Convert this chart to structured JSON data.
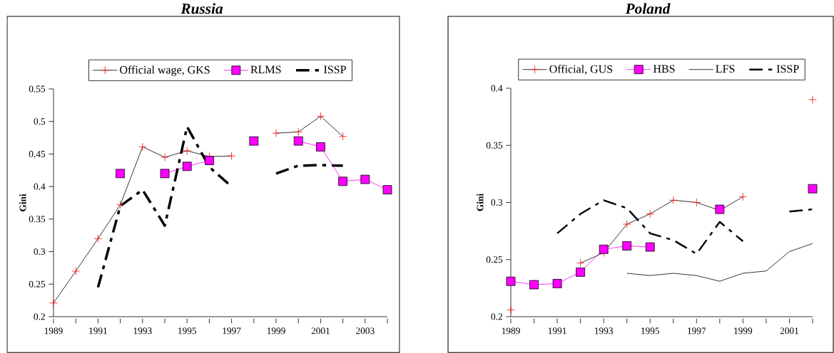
{
  "chart_data": [
    {
      "type": "line",
      "title": "Russia",
      "ylabel": "Gini",
      "legend": "top",
      "categories": [
        "1989",
        null,
        "1991",
        null,
        "1993",
        null,
        "1995",
        null,
        "1997",
        null,
        "1999",
        null,
        "2001",
        null,
        "2003",
        null
      ],
      "ylim": [
        0.2,
        0.55
      ],
      "yticks": [
        0.2,
        0.25,
        0.3,
        0.35,
        0.4,
        0.45,
        0.5,
        0.55
      ],
      "series": [
        {
          "name": "Official wage, GKS",
          "color": "#ff0000",
          "marker": "cross",
          "line_style": "solid",
          "values": [
            0.221,
            0.27,
            0.32,
            0.372,
            0.461,
            0.445,
            0.455,
            0.446,
            0.447,
            null,
            0.482,
            0.484,
            0.508,
            0.477,
            null,
            null
          ]
        },
        {
          "name": "RLMS",
          "color": "#ff00ff",
          "marker": "square",
          "line_style": "solid",
          "values": [
            null,
            null,
            null,
            0.42,
            null,
            0.42,
            0.431,
            0.44,
            null,
            0.47,
            null,
            0.47,
            0.461,
            0.408,
            0.411,
            0.395
          ]
        },
        {
          "name": "ISSP",
          "color": "#000000",
          "marker": "none",
          "line_style": "dashed",
          "values": [
            null,
            null,
            0.245,
            0.37,
            0.395,
            0.34,
            0.492,
            0.43,
            0.4,
            null,
            0.42,
            0.432,
            0.433,
            0.432,
            null,
            null
          ]
        }
      ]
    },
    {
      "type": "line",
      "title": "Poland",
      "ylabel": "Gini",
      "legend": "top",
      "categories": [
        "1989",
        null,
        "1991",
        null,
        "1993",
        null,
        "1995",
        null,
        "1997",
        null,
        "1999",
        null,
        "2001",
        null
      ],
      "ylim": [
        0.2,
        0.4
      ],
      "yticks": [
        0.2,
        0.25,
        0.3,
        0.35,
        0.4
      ],
      "series": [
        {
          "name": "Official, GUS",
          "color": "#ff0000",
          "marker": "cross",
          "line_style": "solid",
          "values": [
            0.206,
            null,
            null,
            0.247,
            0.256,
            0.281,
            0.29,
            0.302,
            0.3,
            0.293,
            0.305,
            null,
            null,
            0.39
          ]
        },
        {
          "name": "HBS",
          "color": "#ff00ff",
          "marker": "square",
          "line_style": "solid",
          "values": [
            0.231,
            0.228,
            0.229,
            0.239,
            0.259,
            0.262,
            0.261,
            null,
            null,
            0.294,
            null,
            null,
            null,
            0.312
          ]
        },
        {
          "name": "LFS",
          "color": "#000000",
          "marker": "none",
          "line_style": "solid",
          "values": [
            null,
            null,
            null,
            null,
            null,
            0.238,
            0.236,
            0.238,
            0.236,
            0.231,
            0.238,
            0.24,
            0.257,
            0.264
          ]
        },
        {
          "name": "ISSP",
          "color": "#000000",
          "marker": "none",
          "line_style": "dashed",
          "values": [
            null,
            null,
            0.273,
            0.29,
            0.302,
            0.295,
            0.273,
            0.267,
            0.255,
            0.283,
            0.266,
            null,
            0.292,
            0.294
          ]
        }
      ]
    }
  ]
}
